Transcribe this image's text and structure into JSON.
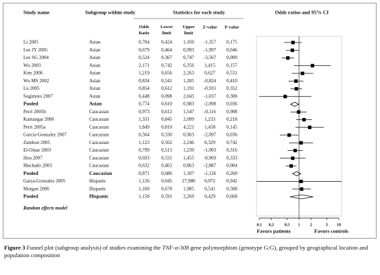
{
  "chart_data": {
    "type": "forest",
    "headers": {
      "study": "Study name",
      "subgroup": "Subgroup within study",
      "stats": "Statistics for each study",
      "plot": "Odds ratios and 95% CI"
    },
    "studies": [
      "Li 2005",
      "Lee JY 2005",
      "Lee SG 2004",
      "Wu 2003",
      "Kim 2006",
      "Wu MS 2002",
      "Lu 2005",
      "Sugimoto 2007",
      "Pooled",
      "Perri 2005b",
      "Kamangar 2006",
      "Perri 2005a",
      "Garcia-Gonzalez 2007",
      "Zambon 2005",
      "El-Omar 2003",
      "Hou 2007",
      "Machado 2003",
      "Pooled",
      "Garza-Gonzalez 2005",
      "Morgan 2006",
      "Pooled"
    ],
    "subgroups": [
      "Asian",
      "Asian",
      "Asian",
      "Asian",
      "Asian",
      "Asian",
      "Asian",
      "Asian",
      "Asian",
      "Caucasian",
      "Caucasian",
      "Caucasian",
      "Caucasian",
      "Caucasian",
      "Caucasian",
      "Caucasian",
      "Caucasian",
      "Caucasian",
      "Hispanic",
      "Hispanic",
      "Hispanic"
    ],
    "markers": [
      "square",
      "square",
      "square",
      "square",
      "square",
      "square",
      "square",
      "square",
      "diamond",
      "square",
      "square",
      "square",
      "square",
      "square",
      "square",
      "square",
      "square",
      "diamond",
      "square",
      "square",
      "diamond"
    ],
    "columns": [
      {
        "name": "Odds Ratio",
        "values": [
          0.704,
          0.679,
          0.524,
          2.171,
          1.219,
          0.834,
          0.854,
          0.448,
          0.774,
          0.973,
          1.331,
          1.849,
          0.564,
          1.123,
          0.799,
          0.693,
          0.632,
          0.871,
          1.126,
          1.16,
          1.158
        ],
        "value_labels": [
          "0,704",
          "0,679",
          "0,524",
          "2,171",
          "1,219",
          "0,834",
          "0,854",
          "0,448",
          "0,774",
          "0,973",
          "1,331",
          "1,849",
          "0,564",
          "1,123",
          "0,799",
          "0,693",
          "0,632",
          "0,871",
          "1,126",
          "1,160",
          "1,158"
        ]
      },
      {
        "name": "Lower limit",
        "values": [
          0.424,
          0.464,
          0.367,
          0.742,
          0.656,
          0.541,
          0.612,
          0.098,
          0.61,
          0.612,
          0.845,
          0.81,
          0.33,
          0.562,
          0.515,
          0.331,
          0.463,
          0.686,
          0.045,
          0.678,
          0.591
        ],
        "value_labels": [
          "0,424",
          "0,464",
          "0,367",
          "0,742",
          "0,656",
          "0,541",
          "0,612",
          "0,098",
          "0,610",
          "0,612",
          "0,845",
          "0,810",
          "0,330",
          "0,562",
          "0,515",
          "0,331",
          "0,463",
          "0,686",
          "0,045",
          "0,678",
          "0,591"
        ]
      },
      {
        "name": "Upper limit",
        "values": [
          1.169,
          0.993,
          0.747,
          6.356,
          2.263,
          1.285,
          1.191,
          2.043,
          0.983,
          1.547,
          2.099,
          4.221,
          0.963,
          2.246,
          1.239,
          1.455,
          0.863,
          1.107,
          27.98,
          1.985,
          2.269
        ],
        "value_labels": [
          "1,169",
          "0,993",
          "0,747",
          "6,356",
          "2,263",
          "1,285",
          "1,191",
          "2,043",
          "0,983",
          "1,547",
          "2,099",
          "4,221",
          "0,963",
          "2,246",
          "1,239",
          "1,455",
          "0,863",
          "1,107",
          "27,980",
          "1,985",
          "2,269"
        ]
      },
      {
        "name": "Z-value",
        "values": [
          -1.357,
          -1.997,
          -3.567,
          1.415,
          0.627,
          -0.824,
          -0.931,
          -1.037,
          -2.098,
          -0.116,
          1.233,
          1.458,
          -2.097,
          0.329,
          -1.003,
          -0.969,
          -2.887,
          -1.126,
          0.072,
          0.541,
          0.429
        ],
        "value_labels": [
          "-1,357",
          "-1,997",
          "-3,567",
          "1,415",
          "0,627",
          "-0,824",
          "-0,931",
          "-1,037",
          "-2,098",
          "-0,116",
          "1,233",
          "1,458",
          "-2,097",
          "0,329",
          "-1,003",
          "-0,969",
          "-2,887",
          "-1,126",
          "0,072",
          "0,541",
          "0,429"
        ]
      },
      {
        "name": "P-value",
        "values": [
          0.175,
          0.046,
          0.0,
          0.157,
          0.531,
          0.41,
          0.352,
          0.3,
          0.036,
          0.908,
          0.218,
          0.145,
          0.036,
          0.742,
          0.316,
          0.333,
          0.004,
          0.26,
          0.942,
          0.588,
          0.668
        ],
        "value_labels": [
          "0,175",
          "0,046",
          "0,000",
          "0,157",
          "0,531",
          "0,410",
          "0,352",
          "0,300",
          "0,036",
          "0,908",
          "0,218",
          "0,145",
          "0,036",
          "0,742",
          "0,316",
          "0,333",
          "0,004",
          "0,260",
          "0,942",
          "0,588",
          "0,668"
        ]
      }
    ],
    "model": "Random effects model",
    "log_x": true,
    "xlim": [
      0.1,
      10
    ],
    "xticks": [
      {
        "value": 0.1,
        "label": "0,1"
      },
      {
        "value": 0.2,
        "label": "0,2"
      },
      {
        "value": 0.5,
        "label": "0,5"
      },
      1,
      2,
      5,
      10
    ],
    "favors_left": "Favors patients",
    "favors_right": "Favors controls",
    "color": "#000000"
  },
  "caption": {
    "label": "Figure 3",
    "text_before": " Funnel plot (subgroup analysis) of studies examining the ",
    "gene": "TNF-α-308",
    "text_after": " gene polymorphism (genotype G/G), grouped by geographical location and population composition"
  }
}
